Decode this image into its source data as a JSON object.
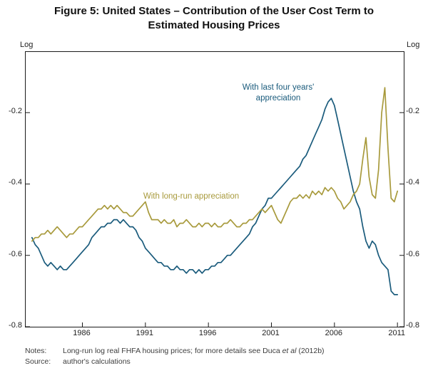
{
  "title": {
    "line1": "Figure 5: United States – Contribution of the User Cost Term to",
    "line2": "Estimated Housing Prices"
  },
  "axis": {
    "left_unit": "Log",
    "right_unit": "Log"
  },
  "footer": {
    "notes_label": "Notes:",
    "notes_pre": "Long-run log real FHFA housing prices; for more details see Duca ",
    "notes_italic": "et al",
    "notes_post": " (2012b)",
    "source_label": "Source:",
    "source_text": "author's calculations"
  },
  "chart_data": {
    "type": "line",
    "title": "Figure 5: United States – Contribution of the User Cost Term to Estimated Housing Prices",
    "x_unit": "year, quarterly frequency",
    "x": {
      "start": 1982.0,
      "step": 0.25
    },
    "xlim": [
      1981.5,
      2011.5
    ],
    "ylim": [
      -0.8,
      -0.03
    ],
    "x_ticks": [
      1986,
      1991,
      1996,
      2001,
      2006,
      2011
    ],
    "x_tick_labels": [
      "1986",
      "1991",
      "1996",
      "2001",
      "2006",
      "2011"
    ],
    "y_ticks": [
      -0.2,
      -0.4,
      -0.6,
      -0.8
    ],
    "y_tick_labels": [
      "-0.2",
      "-0.4",
      "-0.6",
      "-0.8"
    ],
    "y_unit": "Log",
    "grid": false,
    "legend_position": "in-plot text annotations",
    "series": [
      {
        "name": "With last four years' appreciation",
        "color": "#1a5b7c",
        "values": [
          -0.55,
          -0.57,
          -0.58,
          -0.6,
          -0.62,
          -0.63,
          -0.62,
          -0.63,
          -0.64,
          -0.63,
          -0.64,
          -0.64,
          -0.63,
          -0.62,
          -0.61,
          -0.6,
          -0.59,
          -0.58,
          -0.57,
          -0.55,
          -0.54,
          -0.53,
          -0.52,
          -0.52,
          -0.51,
          -0.51,
          -0.5,
          -0.5,
          -0.51,
          -0.5,
          -0.51,
          -0.52,
          -0.52,
          -0.53,
          -0.55,
          -0.56,
          -0.58,
          -0.59,
          -0.6,
          -0.61,
          -0.62,
          -0.62,
          -0.63,
          -0.63,
          -0.64,
          -0.64,
          -0.63,
          -0.64,
          -0.64,
          -0.65,
          -0.64,
          -0.64,
          -0.65,
          -0.64,
          -0.65,
          -0.64,
          -0.64,
          -0.63,
          -0.63,
          -0.62,
          -0.62,
          -0.61,
          -0.6,
          -0.6,
          -0.59,
          -0.58,
          -0.57,
          -0.56,
          -0.55,
          -0.54,
          -0.52,
          -0.51,
          -0.49,
          -0.47,
          -0.46,
          -0.44,
          -0.44,
          -0.43,
          -0.42,
          -0.41,
          -0.4,
          -0.39,
          -0.38,
          -0.37,
          -0.36,
          -0.35,
          -0.33,
          -0.32,
          -0.3,
          -0.28,
          -0.26,
          -0.24,
          -0.22,
          -0.19,
          -0.17,
          -0.16,
          -0.18,
          -0.22,
          -0.26,
          -0.3,
          -0.34,
          -0.38,
          -0.42,
          -0.45,
          -0.47,
          -0.52,
          -0.56,
          -0.58,
          -0.56,
          -0.57,
          -0.6,
          -0.62,
          -0.63,
          -0.64,
          -0.7,
          -0.71,
          -0.71
        ]
      },
      {
        "name": "With long-run appreciation",
        "color": "#a89a3c",
        "values": [
          -0.56,
          -0.55,
          -0.55,
          -0.54,
          -0.54,
          -0.53,
          -0.54,
          -0.53,
          -0.52,
          -0.53,
          -0.54,
          -0.55,
          -0.54,
          -0.54,
          -0.53,
          -0.52,
          -0.52,
          -0.51,
          -0.5,
          -0.49,
          -0.48,
          -0.47,
          -0.47,
          -0.46,
          -0.47,
          -0.46,
          -0.47,
          -0.46,
          -0.47,
          -0.48,
          -0.48,
          -0.49,
          -0.49,
          -0.48,
          -0.47,
          -0.46,
          -0.45,
          -0.48,
          -0.5,
          -0.5,
          -0.5,
          -0.51,
          -0.5,
          -0.51,
          -0.51,
          -0.5,
          -0.52,
          -0.51,
          -0.51,
          -0.5,
          -0.51,
          -0.52,
          -0.52,
          -0.51,
          -0.52,
          -0.51,
          -0.51,
          -0.52,
          -0.51,
          -0.52,
          -0.52,
          -0.51,
          -0.51,
          -0.5,
          -0.51,
          -0.52,
          -0.52,
          -0.51,
          -0.51,
          -0.5,
          -0.5,
          -0.49,
          -0.48,
          -0.47,
          -0.48,
          -0.47,
          -0.46,
          -0.48,
          -0.5,
          -0.51,
          -0.49,
          -0.47,
          -0.45,
          -0.44,
          -0.44,
          -0.43,
          -0.44,
          -0.43,
          -0.44,
          -0.42,
          -0.43,
          -0.42,
          -0.43,
          -0.41,
          -0.42,
          -0.41,
          -0.42,
          -0.44,
          -0.45,
          -0.47,
          -0.46,
          -0.45,
          -0.43,
          -0.42,
          -0.4,
          -0.33,
          -0.27,
          -0.38,
          -0.43,
          -0.44,
          -0.36,
          -0.2,
          -0.13,
          -0.3,
          -0.44,
          -0.45,
          -0.42
        ]
      }
    ],
    "annotations": [
      {
        "line1": "With last four years'",
        "line2": "appreciation",
        "color": "#1a5b7c"
      },
      {
        "line1": "With long-run appreciation",
        "color": "#a89a3c"
      }
    ]
  }
}
